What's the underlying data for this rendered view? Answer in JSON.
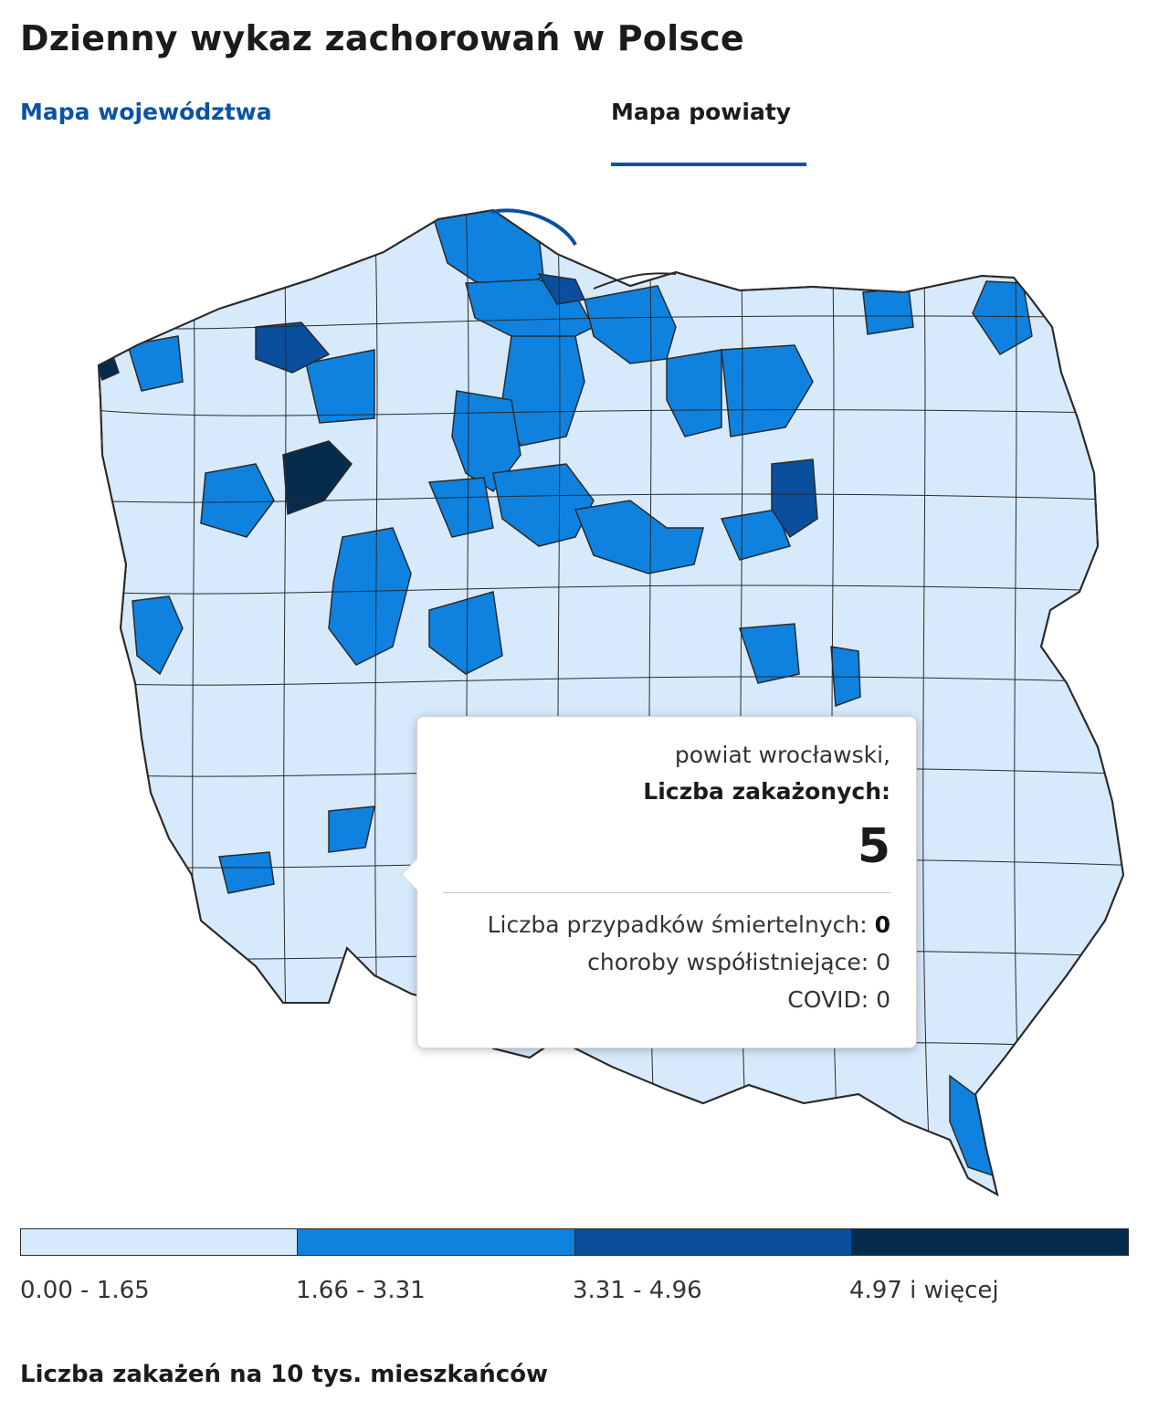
{
  "page_title": "Dzienny wykaz zachorowań w Polsce",
  "tabs": [
    {
      "label": "Mapa województwa",
      "active": false
    },
    {
      "label": "Mapa powiaty",
      "active": true
    }
  ],
  "tooltip": {
    "name": "powiat wrocławski,",
    "infected_label": "Liczba zakażonych:",
    "infected_value": "5",
    "deaths_label": "Liczba przypadków śmiertelnych:",
    "deaths_value": "0",
    "comorbid_label": "choroby współistniejące:",
    "comorbid_value": "0",
    "covid_label": "COVID:",
    "covid_value": "0"
  },
  "legend": {
    "items": [
      {
        "label": "0.00 - 1.65",
        "color": "#d6eafc"
      },
      {
        "label": "1.66 - 3.31",
        "color": "#0f82e0"
      },
      {
        "label": "3.31 - 4.96",
        "color": "#0a4f9e"
      },
      {
        "label": "4.97 i więcej",
        "color": "#052c4d"
      }
    ]
  },
  "footer_text": "Liczba zakażeń na 10 tys. mieszkańców",
  "colors": {
    "accent": "#0b52a5",
    "border": "#2a2a2a",
    "water": "#0a4f9e"
  }
}
